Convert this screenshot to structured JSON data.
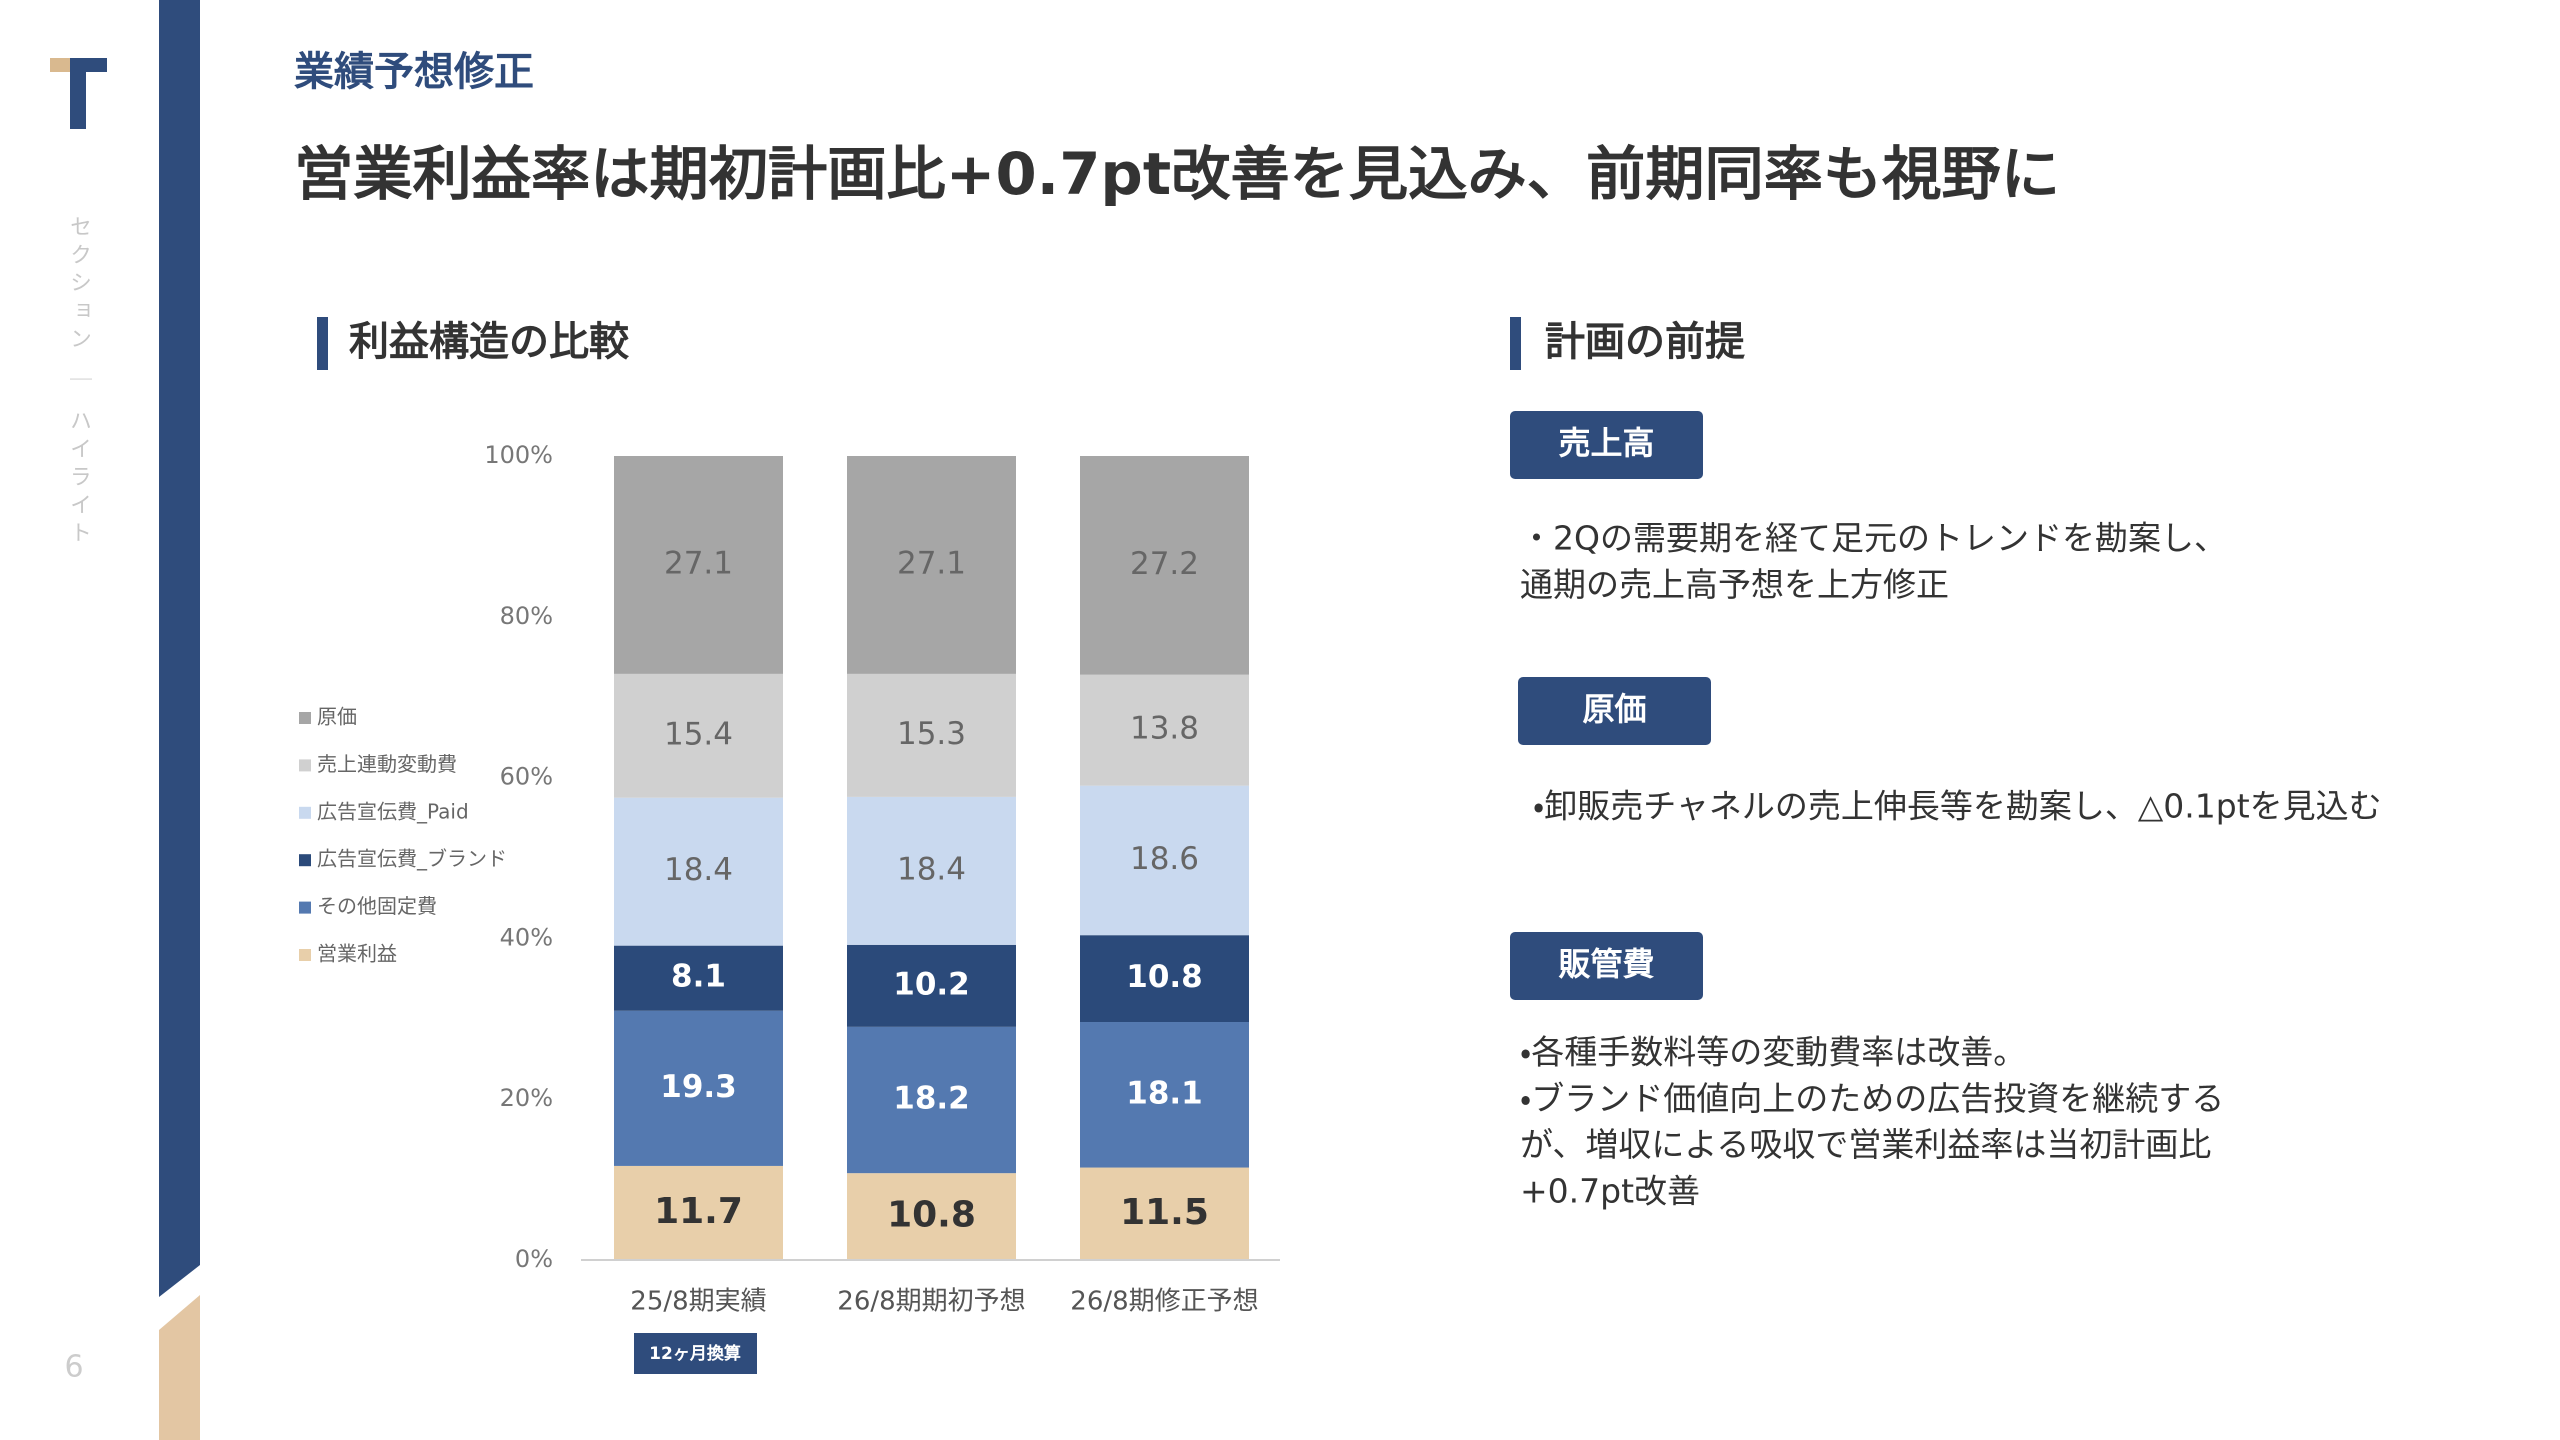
{
  "sidebar": {
    "section_label": "セクション ｜ ハイライト",
    "page_number": "6"
  },
  "header": {
    "section": "業績予想修正",
    "title": "営業利益率は期初計画比+0.7pt改善を見込み、前期同率も視野に"
  },
  "chart_heading": "利益構造の比較",
  "chart_data": {
    "type": "stacked_bar",
    "categories": [
      "25/8期実績",
      "26/8期期初予想",
      "26/8期修正予想"
    ],
    "series": [
      {
        "name": "営業利益",
        "color": "#e8cfaa",
        "values": [
          11.7,
          10.8,
          11.5
        ]
      },
      {
        "name": "その他固定費",
        "color": "#5479b0",
        "values": [
          19.3,
          18.2,
          18.1
        ]
      },
      {
        "name": "広告宣伝費_ブランド",
        "color": "#2b4a7a",
        "values": [
          8.1,
          10.2,
          10.8
        ]
      },
      {
        "name": "広告宣伝費_Paid",
        "color": "#c9d9ef",
        "values": [
          18.4,
          18.4,
          18.6
        ]
      },
      {
        "name": "売上連動変動費",
        "color": "#d0d0d0",
        "values": [
          15.4,
          15.3,
          13.8
        ]
      },
      {
        "name": "原価",
        "color": "#a6a6a6",
        "values": [
          27.1,
          27.1,
          27.2
        ]
      }
    ],
    "ylim": [
      0,
      100
    ],
    "yticks": [
      {
        "value": 0,
        "label": "0%"
      },
      {
        "value": 20,
        "label": "20%"
      },
      {
        "value": 40,
        "label": "40%"
      },
      {
        "value": 60,
        "label": "60%"
      },
      {
        "value": 80,
        "label": "80%"
      },
      {
        "value": 100,
        "label": "100%"
      }
    ],
    "grid": false,
    "legend": "left",
    "annotation": "12ヶ月換算"
  },
  "plan": {
    "heading": "計画の前提",
    "items": [
      {
        "label": "売上高",
        "lines": [
          "・2Qの需要期を経て足元のトレンドを勘案し、",
          "通期の売上高予想を上方修正"
        ]
      },
      {
        "label": "原価",
        "lines": [
          "・卸販売チャネルの売上伸長等を勘案し、△0.1ptを見込む"
        ]
      },
      {
        "label": "販管費",
        "lines": [
          "・各種手数料等の変動費率は改善。",
          "・ブランド価値向上のための広告投資を継続する",
          "が、増収による吸収で営業利益率は当初計画比",
          "+0.7pt改善"
        ]
      }
    ]
  }
}
